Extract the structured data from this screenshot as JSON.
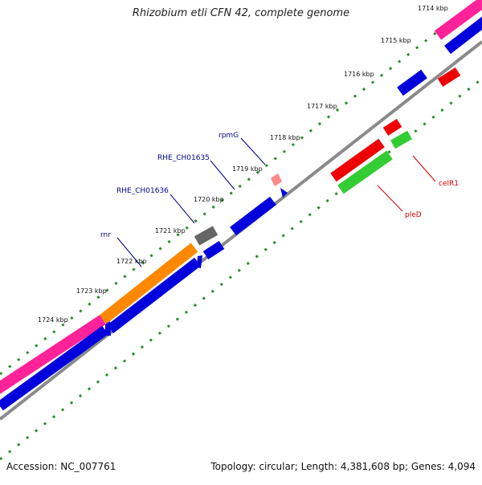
{
  "title": "Rhizobium etli CFN 42, complete genome",
  "footer": {
    "accession": "Accession: NC_007761",
    "summary": "Topology: circular; Length: 4,381,608 bp; Genes: 4,094"
  },
  "colors": {
    "backbone": "#888888",
    "tick_ring": "#2e8b2e",
    "cds_forward": "#0000dd",
    "cds_reverse": "#ee0000",
    "rrna": "#ff8800",
    "pink_feature": "#ff2299",
    "green_feature": "#33cc33",
    "gray_feature": "#666666",
    "pale_feature": "#ff8888",
    "label_forward": "#00008b",
    "label_reverse": "#cc0000"
  },
  "kbp_labels": [
    "1714 kbp",
    "1715 kbp",
    "1716 kbp",
    "1717 kbp",
    "1718 kbp",
    "1719 kbp",
    "1720 kbp",
    "1721 kbp",
    "1722 kbp",
    "1723 kbp",
    "1724 kbp"
  ],
  "gene_labels": [
    "rpmG",
    "RHE_CH01635",
    "RHE_CH01636",
    "rnr",
    "celR1",
    "pleD"
  ]
}
